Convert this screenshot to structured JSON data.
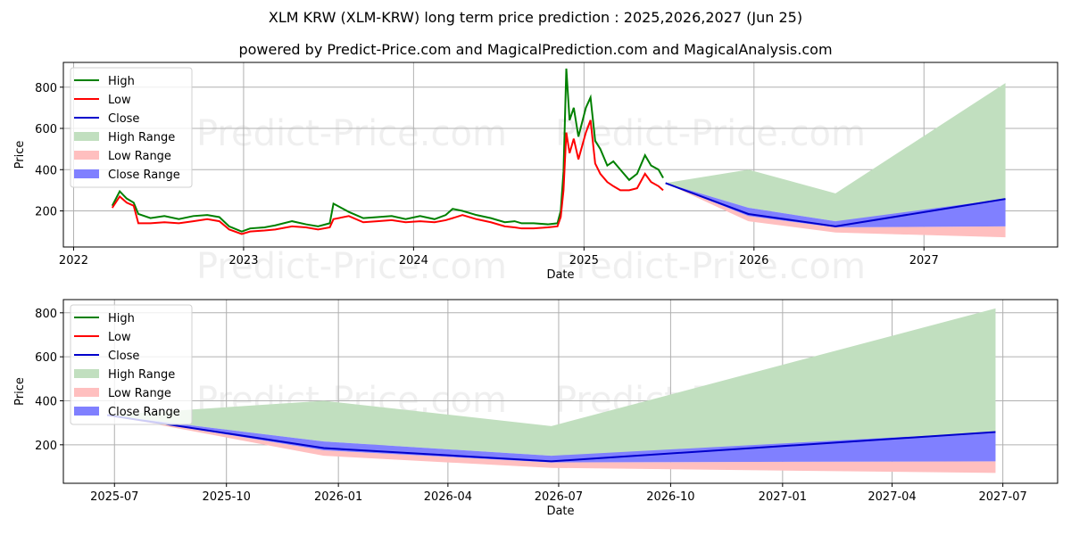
{
  "header": {
    "title": "XLM KRW (XLM-KRW) long term price prediction : 2025,2026,2027 (Jun 25)",
    "subtitle": "powered by Predict-Price.com and MagicalPrediction.com and MagicalAnalysis.com"
  },
  "watermark": "Predict-Price.com",
  "legend": [
    "High",
    "Low",
    "Close",
    "High Range",
    "Low Range",
    "Close Range"
  ],
  "colors": {
    "high": "#008000",
    "low": "#ff0000",
    "close": "#0000cc",
    "high_range": "#c1dfbf",
    "low_range": "#ffbfbf",
    "close_range": "#8080ff",
    "grid": "#b0b0b0"
  },
  "chart_data": [
    {
      "type": "line",
      "title": "XLM KRW (XLM-KRW) long term price prediction : 2025,2026,2027 (Jun 25)",
      "xlabel": "Date",
      "ylabel": "Price",
      "xticks": [
        "2022",
        "2023",
        "2024",
        "2025",
        "2026",
        "2027"
      ],
      "yticks": [
        200,
        400,
        600,
        800
      ],
      "ylim": [
        25,
        920
      ],
      "xlim": [
        "2021-12-10",
        "2027-10-15"
      ],
      "grid": true,
      "legend_position": "upper left",
      "historical": {
        "x": [
          "2022-03-25",
          "2022-04-10",
          "2022-04-25",
          "2022-05-10",
          "2022-05-20",
          "2022-06-15",
          "2022-07-15",
          "2022-08-15",
          "2022-09-15",
          "2022-10-15",
          "2022-11-10",
          "2022-12-01",
          "2022-12-28",
          "2023-01-15",
          "2023-02-15",
          "2023-03-10",
          "2023-04-15",
          "2023-05-15",
          "2023-06-10",
          "2023-07-05",
          "2023-07-13",
          "2023-08-15",
          "2023-09-15",
          "2023-10-15",
          "2023-11-15",
          "2023-12-15",
          "2024-01-15",
          "2024-02-15",
          "2024-03-10",
          "2024-03-25",
          "2024-04-15",
          "2024-05-15",
          "2024-06-15",
          "2024-07-15",
          "2024-08-05",
          "2024-08-20",
          "2024-09-15",
          "2024-10-15",
          "2024-11-05",
          "2024-11-12",
          "2024-11-18",
          "2024-11-24",
          "2024-12-01",
          "2024-12-10",
          "2024-12-20",
          "2025-01-05",
          "2025-01-15",
          "2025-01-25",
          "2025-02-05",
          "2025-02-20",
          "2025-03-05",
          "2025-03-20",
          "2025-04-08",
          "2025-04-25",
          "2025-05-12",
          "2025-05-25",
          "2025-06-10",
          "2025-06-20"
        ],
        "high": [
          225,
          295,
          260,
          240,
          185,
          165,
          175,
          160,
          175,
          180,
          170,
          125,
          100,
          115,
          120,
          130,
          150,
          135,
          125,
          140,
          235,
          195,
          165,
          170,
          175,
          160,
          175,
          160,
          180,
          210,
          200,
          180,
          165,
          145,
          150,
          140,
          140,
          135,
          140,
          200,
          390,
          890,
          640,
          700,
          560,
          700,
          750,
          540,
          500,
          420,
          440,
          400,
          350,
          380,
          470,
          420,
          400,
          360
        ],
        "low": [
          215,
          270,
          240,
          225,
          140,
          140,
          145,
          140,
          150,
          160,
          150,
          110,
          88,
          100,
          105,
          110,
          125,
          120,
          110,
          120,
          160,
          175,
          145,
          150,
          155,
          145,
          150,
          145,
          155,
          165,
          180,
          160,
          145,
          125,
          120,
          115,
          115,
          120,
          125,
          170,
          300,
          580,
          480,
          550,
          450,
          580,
          640,
          430,
          380,
          340,
          320,
          300,
          300,
          310,
          380,
          340,
          320,
          300
        ]
      },
      "forecast": {
        "x": [
          "2025-06-25",
          "2025-12-20",
          "2026-06-25",
          "2027-06-25"
        ],
        "close": [
          335,
          185,
          125,
          258
        ],
        "high_range_upper": [
          335,
          400,
          285,
          820
        ],
        "high_range_lower": [
          335,
          215,
          150,
          195
        ],
        "close_range_upper": [
          335,
          215,
          150,
          258
        ],
        "close_range_lower": [
          335,
          175,
          120,
          125
        ],
        "low_range_upper": [
          335,
          175,
          120,
          125
        ],
        "low_range_lower": [
          335,
          150,
          95,
          72
        ]
      }
    },
    {
      "type": "line",
      "xlabel": "Date",
      "ylabel": "Price",
      "xticks": [
        "2025-07",
        "2025-10",
        "2026-01",
        "2026-04",
        "2026-07",
        "2026-10",
        "2027-01",
        "2027-04",
        "2027-07"
      ],
      "yticks": [
        200,
        400,
        600,
        800
      ],
      "ylim": [
        25,
        860
      ],
      "xlim": [
        "2025-05-20",
        "2027-08-15"
      ],
      "grid": true,
      "legend_position": "upper left",
      "forecast": {
        "x": [
          "2025-06-25",
          "2025-12-20",
          "2026-06-25",
          "2027-06-25"
        ],
        "close": [
          335,
          185,
          125,
          258
        ],
        "high_range_upper": [
          335,
          400,
          285,
          820
        ],
        "high_range_lower": [
          335,
          215,
          150,
          195
        ],
        "close_range_upper": [
          335,
          215,
          150,
          258
        ],
        "close_range_lower": [
          335,
          175,
          120,
          125
        ],
        "low_range_upper": [
          335,
          175,
          120,
          125
        ],
        "low_range_lower": [
          335,
          150,
          95,
          72
        ]
      }
    }
  ]
}
